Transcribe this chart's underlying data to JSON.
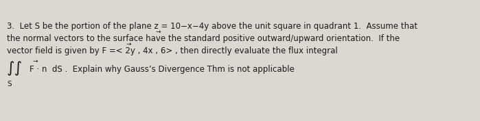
{
  "background_color": "#dbd7d2",
  "text_color": "#1a1a1a",
  "figsize": [
    6.99,
    1.77
  ],
  "dpi": 100,
  "line1": "3.  Let S be the portion of the plane z = 10−x−4y above the unit square in quadrant 1.  Assume that",
  "line2": "the normal vectors to the surface have the standard positive outward/upward orientation.  If the",
  "line3": "vector field is given by F =< 2y , 4x , 6> , then directly evaluate the flux integral",
  "line4_text": "F · n  dS .  Explain why Gauss’s Divergence Thm is not applicable",
  "line4_S": "S",
  "font_size_main": 8.5,
  "font_size_integral": 16,
  "font_size_arrow": 6.5,
  "font_family": "DejaVu Sans"
}
